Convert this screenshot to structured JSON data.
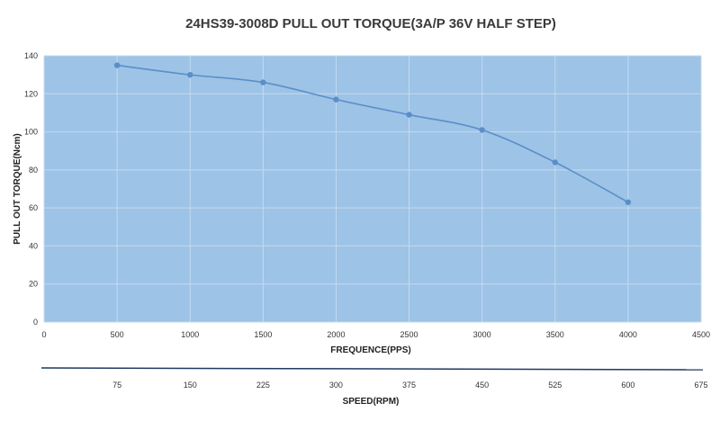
{
  "chart_data": {
    "type": "line",
    "title": "24HS39-3008D PULL OUT TORQUE(3A/P 36V HALF STEP)",
    "xlabel": "FREQUENCE(PPS)",
    "ylabel": "PULL OUT TORQUE(Ncm)",
    "xlim": [
      0,
      4500
    ],
    "ylim": [
      0,
      140
    ],
    "x_ticks": [
      "0",
      "500",
      "1000",
      "1500",
      "2000",
      "2500",
      "3000",
      "3500",
      "4000",
      "4500"
    ],
    "y_ticks": [
      "0",
      "20",
      "40",
      "60",
      "80",
      "100",
      "120",
      "140"
    ],
    "grid": true,
    "plot_background": "#9dc3e6",
    "grid_color": "#c5daef",
    "line_color": "#5b8ec9",
    "series": [
      {
        "x": [
          500,
          1000,
          1500,
          2000,
          2500,
          3000,
          3500,
          4000
        ],
        "values": [
          135,
          130,
          126,
          117,
          109,
          101,
          84,
          63
        ]
      }
    ],
    "secondary_axis": {
      "label": "SPEED(RPM)",
      "ticks": [
        "75",
        "150",
        "225",
        "300",
        "375",
        "450",
        "525",
        "600",
        "675"
      ],
      "tick_positions_pps": [
        500,
        1000,
        1500,
        2000,
        2500,
        3000,
        3500,
        4000,
        4500
      ],
      "line_color": "#1f3864"
    }
  }
}
